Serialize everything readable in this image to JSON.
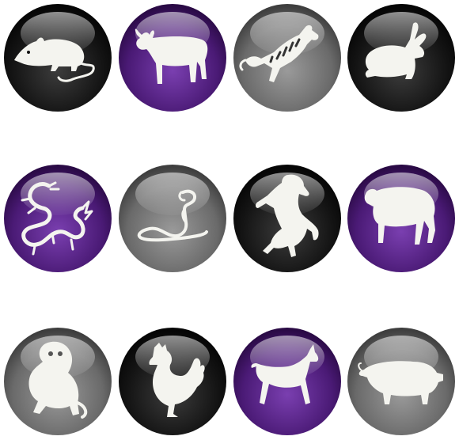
{
  "orbs": [
    {
      "animal": "rat",
      "icon": "rat-icon",
      "finish": "black"
    },
    {
      "animal": "ox",
      "icon": "ox-icon",
      "finish": "purple"
    },
    {
      "animal": "tiger",
      "icon": "tiger-icon",
      "finish": "gray"
    },
    {
      "animal": "rabbit",
      "icon": "rabbit-icon",
      "finish": "black"
    },
    {
      "animal": "dragon",
      "icon": "dragon-icon",
      "finish": "purple"
    },
    {
      "animal": "snake",
      "icon": "snake-icon",
      "finish": "gray"
    },
    {
      "animal": "horse",
      "icon": "horse-icon",
      "finish": "black"
    },
    {
      "animal": "goat",
      "icon": "goat-icon",
      "finish": "purple"
    },
    {
      "animal": "monkey",
      "icon": "monkey-icon",
      "finish": "gray"
    },
    {
      "animal": "rooster",
      "icon": "rooster-icon",
      "finish": "black"
    },
    {
      "animal": "dog",
      "icon": "dog-icon",
      "finish": "purple"
    },
    {
      "animal": "pig",
      "icon": "pig-icon",
      "finish": "gray"
    }
  ],
  "colors": {
    "black": {
      "inner": "#3c3c3c",
      "outer": "#050505"
    },
    "purple": {
      "inner": "#7a3fb0",
      "outer": "#2a0a45"
    },
    "gray": {
      "inner": "#9a9a9a",
      "outer": "#3e3e3e"
    },
    "silhouette": "#f4f4ef",
    "background": "#ffffff"
  }
}
